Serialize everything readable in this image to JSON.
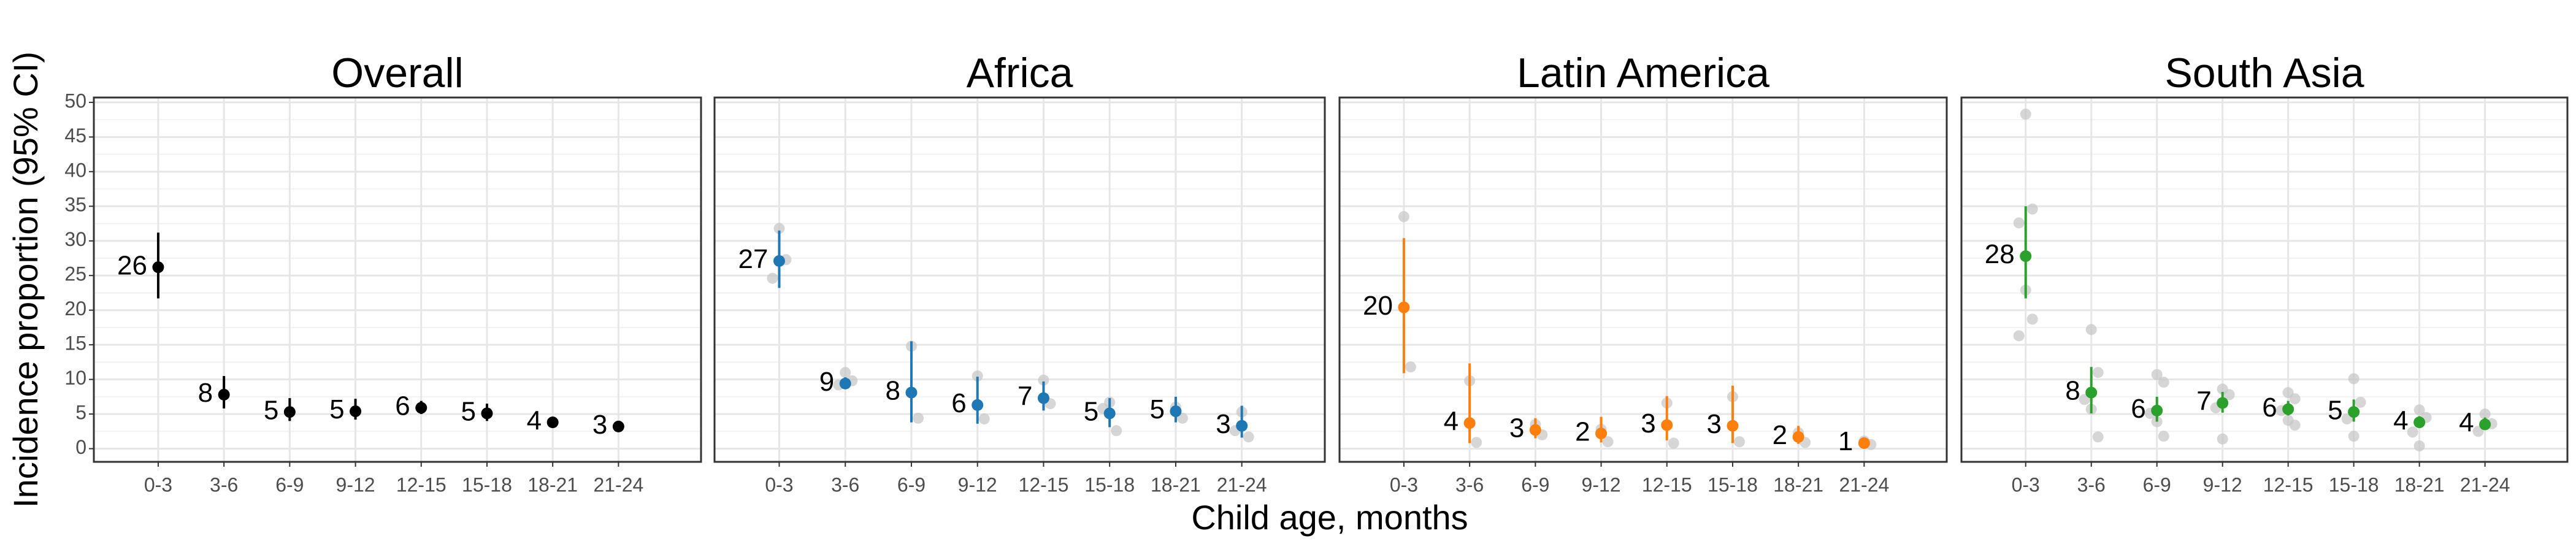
{
  "chart_data": [
    {
      "type": "errorbar",
      "title": "Overall",
      "ylabel": "Incidence proportion (95% CI)",
      "xlabel": "Child age, months",
      "categories": [
        "0-3",
        "3-6",
        "6-9",
        "9-12",
        "12-15",
        "15-18",
        "18-21",
        "21-24"
      ],
      "values": [
        26.2,
        7.8,
        5.3,
        5.4,
        5.9,
        5.1,
        3.8,
        3.2
      ],
      "lower": [
        21.7,
        5.8,
        4.0,
        4.2,
        5.0,
        4.0,
        3.2,
        2.6
      ],
      "upper": [
        31.2,
        10.5,
        7.3,
        7.2,
        6.9,
        6.5,
        4.4,
        3.8
      ],
      "value_labels": [
        "26",
        "8",
        "5",
        "5",
        "6",
        "5",
        "4",
        "3"
      ],
      "color": "#000000",
      "ylim": [
        -1.9,
        50.7
      ],
      "yticks": [
        0,
        5,
        10,
        15,
        20,
        25,
        30,
        35,
        40,
        45,
        50
      ],
      "grid": true
    },
    {
      "type": "errorbar",
      "title": "Africa",
      "categories": [
        "0-3",
        "3-6",
        "6-9",
        "9-12",
        "12-15",
        "15-18",
        "18-21",
        "21-24"
      ],
      "values": [
        27.1,
        9.4,
        8.1,
        6.3,
        7.3,
        5.1,
        5.4,
        3.3
      ],
      "lower": [
        23.2,
        8.7,
        3.8,
        3.6,
        5.5,
        3.1,
        3.8,
        1.6
      ],
      "upper": [
        31.5,
        10.3,
        15.5,
        10.4,
        9.7,
        7.3,
        7.5,
        6.2
      ],
      "value_labels": [
        "27",
        "9",
        "8",
        "6",
        "7",
        "5",
        "5",
        "3"
      ],
      "color": "#1f77b4",
      "points": {
        "color": "#c4c4c4",
        "x": [
          "0-3",
          "0-3",
          "0-3",
          "3-6",
          "3-6",
          "3-6",
          "6-9",
          "6-9",
          "9-12",
          "9-12",
          "12-15",
          "12-15",
          "15-18",
          "15-18",
          "15-18",
          "18-21",
          "18-21",
          "21-24",
          "21-24",
          "21-24"
        ],
        "values": [
          31.8,
          27.3,
          24.6,
          11.0,
          9.8,
          9.2,
          14.8,
          4.4,
          10.5,
          4.3,
          9.9,
          6.5,
          6.7,
          2.6,
          5.8,
          6.0,
          4.4,
          5.3,
          1.7,
          2.6
        ]
      },
      "ylim": [
        -1.9,
        50.7
      ],
      "yticks": [
        0,
        5,
        10,
        15,
        20,
        25,
        30,
        35,
        40,
        45,
        50
      ],
      "grid": true
    },
    {
      "type": "errorbar",
      "title": "Latin America",
      "categories": [
        "0-3",
        "3-6",
        "6-9",
        "9-12",
        "12-15",
        "15-18",
        "18-21",
        "21-24"
      ],
      "values": [
        20.4,
        3.7,
        2.7,
        2.2,
        3.4,
        3.3,
        1.7,
        0.8
      ],
      "lower": [
        10.9,
        0.8,
        1.5,
        0.9,
        1.2,
        0.8,
        0.7,
        0.3
      ],
      "upper": [
        30.4,
        12.3,
        4.4,
        4.6,
        7.6,
        9.1,
        3.3,
        1.5
      ],
      "value_labels": [
        "20",
        "4",
        "3",
        "2",
        "3",
        "3",
        "2",
        "1"
      ],
      "color": "#ff7f0e",
      "points": {
        "color": "#c4c4c4",
        "x": [
          "0-3",
          "0-3",
          "3-6",
          "3-6",
          "6-9",
          "6-9",
          "9-12",
          "9-12",
          "12-15",
          "12-15",
          "15-18",
          "15-18",
          "18-21",
          "18-21",
          "21-24",
          "21-24"
        ],
        "values": [
          33.5,
          11.8,
          9.8,
          0.9,
          3.5,
          2.0,
          2.8,
          1.0,
          6.6,
          0.8,
          7.5,
          1.0,
          2.3,
          0.9,
          1.1,
          0.6
        ]
      },
      "ylim": [
        -1.9,
        50.7
      ],
      "yticks": [
        0,
        5,
        10,
        15,
        20,
        25,
        30,
        35,
        40,
        45,
        50
      ],
      "grid": true
    },
    {
      "type": "errorbar",
      "title": "South Asia",
      "categories": [
        "0-3",
        "3-6",
        "6-9",
        "9-12",
        "12-15",
        "15-18",
        "18-21",
        "21-24"
      ],
      "values": [
        27.8,
        8.1,
        5.5,
        6.6,
        5.7,
        5.3,
        3.8,
        3.5
      ],
      "lower": [
        21.7,
        5.1,
        3.9,
        5.2,
        4.8,
        3.9,
        3.1,
        2.8
      ],
      "upper": [
        35.0,
        11.8,
        7.5,
        8.2,
        6.9,
        7.1,
        4.7,
        4.5
      ],
      "value_labels": [
        "28",
        "8",
        "6",
        "7",
        "6",
        "5",
        "4",
        "4"
      ],
      "color": "#2ca02c",
      "points": {
        "color": "#c4c4c4",
        "x": [
          "0-3",
          "0-3",
          "0-3",
          "0-3",
          "0-3",
          "0-3",
          "3-6",
          "3-6",
          "3-6",
          "3-6",
          "3-6",
          "6-9",
          "6-9",
          "6-9",
          "6-9",
          "6-9",
          "9-12",
          "9-12",
          "9-12",
          "9-12",
          "12-15",
          "12-15",
          "12-15",
          "12-15",
          "12-15",
          "15-18",
          "15-18",
          "15-18",
          "15-18",
          "18-21",
          "18-21",
          "18-21",
          "18-21",
          "21-24",
          "21-24",
          "21-24"
        ],
        "values": [
          48.3,
          34.6,
          32.6,
          22.9,
          18.7,
          16.3,
          17.2,
          11.0,
          7.1,
          5.7,
          1.7,
          10.7,
          9.6,
          5.1,
          3.9,
          1.8,
          8.6,
          7.8,
          5.9,
          1.4,
          8.1,
          7.2,
          5.5,
          4.1,
          3.4,
          10.1,
          6.7,
          4.3,
          1.8,
          5.6,
          4.5,
          2.4,
          0.4,
          5.0,
          3.6,
          2.5
        ]
      },
      "ylim": [
        -1.9,
        50.7
      ],
      "yticks": [
        0,
        5,
        10,
        15,
        20,
        25,
        30,
        35,
        40,
        45,
        50
      ],
      "grid": true
    }
  ]
}
